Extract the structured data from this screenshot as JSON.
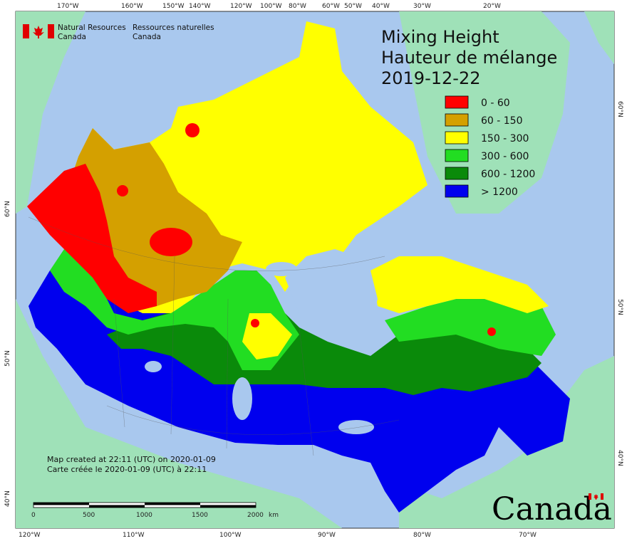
{
  "header": {
    "department_en_line1": "Natural Resources",
    "department_en_line2": "Canada",
    "department_fr_line1": "Ressources naturelles",
    "department_fr_line2": "Canada"
  },
  "title": {
    "line1": "Mixing Height",
    "line2": "Hauteur de mélange",
    "date": "2019-12-22"
  },
  "legend": [
    {
      "label": "0 - 60",
      "color": "#ff0000"
    },
    {
      "label": "60 - 150",
      "color": "#d4a000"
    },
    {
      "label": "150 - 300",
      "color": "#ffff00"
    },
    {
      "label": "300 - 600",
      "color": "#22dd22"
    },
    {
      "label": "600 - 1200",
      "color": "#0a8a0a"
    },
    {
      "label": "> 1200",
      "color": "#0000ee"
    }
  ],
  "top_ticks": [
    "170°W",
    "160°W",
    "150°W",
    "140°W",
    "120°W",
    "100°W",
    "80°W",
    "60°W",
    "50°W",
    "40°W",
    "30°W",
    "20°W"
  ],
  "bottom_ticks": [
    "120°W",
    "110°W",
    "100°W",
    "90°W",
    "80°W",
    "70°W"
  ],
  "left_ticks": [
    "60°N",
    "50°N",
    "40°N"
  ],
  "right_ticks": [
    "60°N",
    "50°N",
    "40°N"
  ],
  "credit": {
    "line1": "Map created at 22:11 (UTC) on 2020-01-09",
    "line2": "Carte créée le 2020-01-09 (UTC) à 22:11"
  },
  "scale_bar": {
    "labels": [
      "0",
      "500",
      "1000",
      "1500",
      "2000"
    ],
    "unit": "km"
  },
  "wordmark": "Canada",
  "colors": {
    "ocean": "#a9c8ee",
    "land_other": "#9fe1b8",
    "land_gray": "#b9b9b9"
  }
}
